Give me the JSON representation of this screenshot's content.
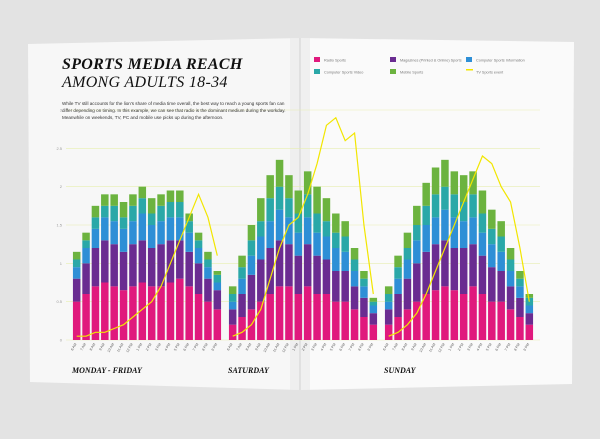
{
  "chart_data": {
    "type": "stacked_bar",
    "title": "SPORTS MEDIA REACH",
    "subtitle": "AMONG ADULTS 18-34",
    "text": "While TV still accounts for the lion's share of media time overall, the best way to reach a young sports fan can differ depending on timing. In this example, we can see that radio is the dominant medium during the workday. Meanwhile on weekends, TV, PC and mobile use picks up during the afternoon.",
    "groups": [
      {
        "label": "MONDAY - FRIDAY",
        "categories": [
          "6 AM",
          "7 AM",
          "8 AM",
          "9 AM",
          "10 AM",
          "11 AM",
          "12 PM",
          "1 PM",
          "2 PM",
          "3 PM",
          "4 PM",
          "5 PM",
          "6 PM",
          "7 PM",
          "8 PM",
          "9 PM"
        ]
      },
      {
        "label": "SATURDAY",
        "categories": [
          "6 AM",
          "7 AM",
          "8 AM",
          "9 AM",
          "10 AM",
          "11 AM",
          "12 PM",
          "1 PM",
          "2 PM",
          "3 PM",
          "4 PM",
          "5 PM",
          "6 PM",
          "7 PM",
          "8 PM",
          "9 PM"
        ]
      },
      {
        "label": "SUNDAY",
        "categories": [
          "6 AM",
          "7 AM",
          "8 AM",
          "9 AM",
          "10 AM",
          "11 AM",
          "12 PM",
          "1 PM",
          "2 PM",
          "3 PM",
          "4 PM",
          "5 PM",
          "6 PM",
          "7 PM",
          "8 PM",
          "9 PM"
        ]
      }
    ],
    "series": [
      {
        "name": "Radio Sports",
        "color": "#e0197d",
        "values": [
          [
            0.5,
            0.6,
            0.7,
            0.75,
            0.7,
            0.65,
            0.7,
            0.75,
            0.7,
            0.7,
            0.75,
            0.8,
            0.7,
            0.6,
            0.5,
            0.4
          ],
          [
            0.2,
            0.3,
            0.4,
            0.5,
            0.6,
            0.7,
            0.7,
            0.6,
            0.7,
            0.6,
            0.6,
            0.5,
            0.5,
            0.4,
            0.3,
            0.2
          ],
          [
            0.2,
            0.3,
            0.4,
            0.5,
            0.6,
            0.65,
            0.7,
            0.65,
            0.6,
            0.7,
            0.6,
            0.5,
            0.5,
            0.4,
            0.3,
            0.2
          ]
        ]
      },
      {
        "name": "Magazines (Printed & Online) Sports",
        "color": "#6a2c91",
        "values": [
          [
            0.3,
            0.4,
            0.5,
            0.55,
            0.55,
            0.5,
            0.55,
            0.55,
            0.5,
            0.55,
            0.55,
            0.5,
            0.45,
            0.4,
            0.3,
            0.25
          ],
          [
            0.2,
            0.3,
            0.45,
            0.55,
            0.6,
            0.6,
            0.55,
            0.5,
            0.55,
            0.5,
            0.45,
            0.4,
            0.4,
            0.3,
            0.25,
            0.15
          ],
          [
            0.2,
            0.3,
            0.4,
            0.5,
            0.55,
            0.6,
            0.6,
            0.55,
            0.6,
            0.55,
            0.5,
            0.45,
            0.4,
            0.3,
            0.25,
            0.15
          ]
        ]
      },
      {
        "name": "Computer Sports Information",
        "color": "#2e8fd6",
        "values": [
          [
            0.15,
            0.2,
            0.25,
            0.3,
            0.3,
            0.3,
            0.3,
            0.35,
            0.3,
            0.3,
            0.3,
            0.3,
            0.25,
            0.2,
            0.15,
            0.1
          ],
          [
            0.1,
            0.2,
            0.25,
            0.3,
            0.35,
            0.4,
            0.35,
            0.3,
            0.35,
            0.3,
            0.3,
            0.3,
            0.25,
            0.2,
            0.15,
            0.1
          ],
          [
            0.1,
            0.2,
            0.25,
            0.3,
            0.35,
            0.35,
            0.4,
            0.4,
            0.35,
            0.35,
            0.3,
            0.3,
            0.25,
            0.2,
            0.15,
            0.1
          ]
        ]
      },
      {
        "name": "Computer Sports Video",
        "color": "#2aa8a8",
        "values": [
          [
            0.1,
            0.1,
            0.15,
            0.15,
            0.2,
            0.15,
            0.2,
            0.2,
            0.15,
            0.2,
            0.2,
            0.2,
            0.15,
            0.1,
            0.1,
            0.1
          ],
          [
            0.1,
            0.15,
            0.2,
            0.2,
            0.3,
            0.3,
            0.25,
            0.25,
            0.3,
            0.25,
            0.2,
            0.2,
            0.2,
            0.15,
            0.1,
            0.05
          ],
          [
            0.1,
            0.15,
            0.15,
            0.2,
            0.25,
            0.3,
            0.3,
            0.3,
            0.25,
            0.3,
            0.25,
            0.2,
            0.2,
            0.15,
            0.1,
            0.1
          ]
        ]
      },
      {
        "name": "Mobile Sports",
        "color": "#6cb33f",
        "values": [
          [
            0.1,
            0.1,
            0.15,
            0.15,
            0.15,
            0.2,
            0.15,
            0.15,
            0.2,
            0.15,
            0.15,
            0.15,
            0.1,
            0.1,
            0.1,
            0.05
          ],
          [
            0.1,
            0.15,
            0.2,
            0.3,
            0.3,
            0.35,
            0.3,
            0.3,
            0.3,
            0.35,
            0.3,
            0.25,
            0.2,
            0.15,
            0.1,
            0.05
          ],
          [
            0.1,
            0.15,
            0.2,
            0.25,
            0.3,
            0.35,
            0.35,
            0.3,
            0.35,
            0.3,
            0.3,
            0.25,
            0.2,
            0.15,
            0.1,
            0.05
          ]
        ]
      },
      {
        "name": "TV Sports event",
        "color": "#f2e600",
        "line": true,
        "values": [
          [
            0.05,
            0.05,
            0.1,
            0.1,
            0.15,
            0.2,
            0.3,
            0.4,
            0.5,
            0.7,
            1.0,
            1.3,
            1.6,
            1.9,
            1.6,
            1.1
          ],
          [
            0.05,
            0.1,
            0.2,
            0.4,
            0.8,
            1.2,
            1.5,
            1.6,
            1.9,
            2.3,
            2.8,
            2.9,
            2.6,
            2.7,
            1.5,
            0.6
          ],
          [
            0.05,
            0.1,
            0.2,
            0.35,
            0.6,
            0.9,
            1.2,
            1.5,
            1.8,
            2.1,
            2.4,
            2.3,
            2.0,
            1.8,
            1.2,
            0.5
          ]
        ]
      }
    ],
    "ylim": [
      0,
      3
    ],
    "yticks": [
      0,
      0.5,
      1,
      1.5,
      2,
      2.5,
      3
    ],
    "grid": true
  }
}
